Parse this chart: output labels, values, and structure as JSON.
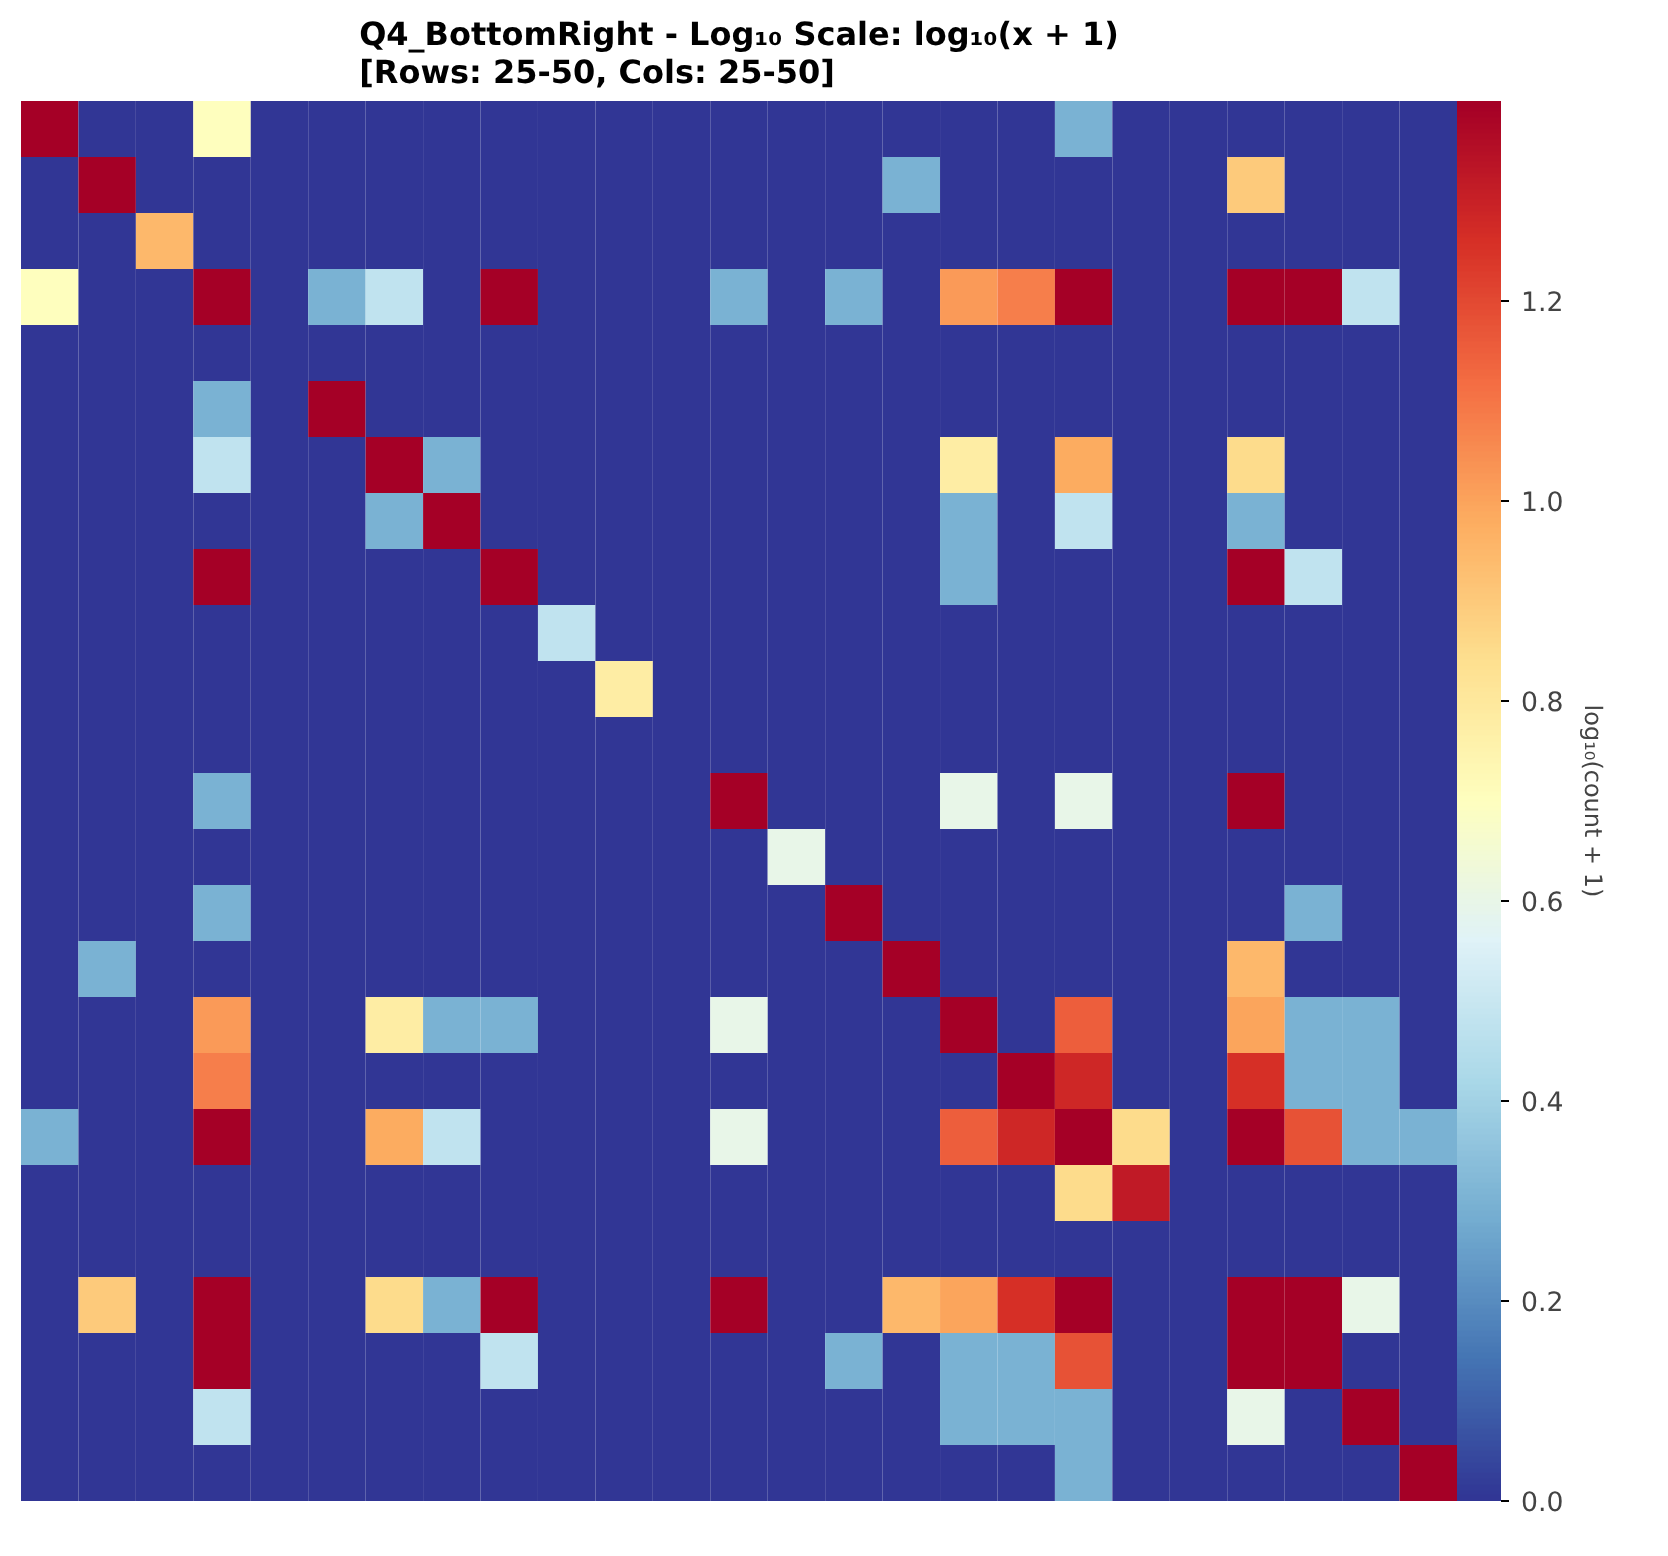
{
  "chart_data": {
    "type": "heatmap",
    "title": "Q4_BottomRight - Log₁₀ Scale: log₁₀(x + 1)\n[Rows: 25-50, Cols: 25-50]",
    "clabel": "log₁₀(count + 1)",
    "categories": [
      null,
      null,
      null,
      null,
      null,
      null,
      null,
      null,
      null,
      null,
      null,
      null,
      null,
      null,
      null,
      null,
      null,
      null,
      null,
      null,
      null,
      null,
      null,
      null,
      null
    ],
    "y_categories": [
      null,
      null,
      null,
      null,
      null,
      null,
      null,
      null,
      null,
      null,
      null,
      null,
      null,
      null,
      null,
      null,
      null,
      null,
      null,
      null,
      null,
      null,
      null,
      null,
      null
    ],
    "clim": [
      0,
      1.4
    ],
    "cticks": [
      {
        "value": 0,
        "label": "0.0"
      },
      {
        "value": 0.2,
        "label": "0.2"
      },
      {
        "value": 0.4,
        "label": "0.4"
      },
      {
        "value": 0.6,
        "label": "0.6"
      },
      {
        "value": 0.8,
        "label": "0.8"
      },
      {
        "value": 1.0,
        "label": "1.0"
      },
      {
        "value": 1.2,
        "label": "1.2"
      }
    ],
    "cells": [
      [
        1.4,
        0,
        0,
        0.7,
        0,
        0,
        0,
        0,
        0,
        0,
        0,
        0,
        0,
        0,
        0,
        0,
        0,
        0,
        0.3,
        0,
        0,
        0,
        0,
        0,
        0
      ],
      [
        0,
        1.4,
        0,
        0,
        0,
        0,
        0,
        0,
        0,
        0,
        0,
        0,
        0,
        0,
        0,
        0.3,
        0,
        0,
        0,
        0,
        0,
        0.9,
        0,
        0,
        0
      ],
      [
        0,
        0,
        0.95,
        0,
        0,
        0,
        0,
        0,
        0,
        0,
        0,
        0,
        0,
        0,
        0,
        0,
        0,
        0,
        0,
        0,
        0,
        0,
        0,
        0,
        0
      ],
      [
        0.7,
        0,
        0,
        1.4,
        0,
        0.3,
        0.48,
        0,
        1.4,
        0,
        0,
        0,
        0.3,
        0,
        0.3,
        0,
        1.02,
        1.08,
        1.4,
        0,
        0,
        1.4,
        1.4,
        0.48,
        0
      ],
      [
        0,
        0,
        0,
        0,
        0,
        0,
        0,
        0,
        0,
        0,
        0,
        0,
        0,
        0,
        0,
        0,
        0,
        0,
        0,
        0,
        0,
        0,
        0,
        0,
        0
      ],
      [
        0,
        0,
        0,
        0.3,
        0,
        1.4,
        0,
        0,
        0,
        0,
        0,
        0,
        0,
        0,
        0,
        0,
        0,
        0,
        0,
        0,
        0,
        0,
        0,
        0,
        0
      ],
      [
        0,
        0,
        0,
        0.48,
        0,
        0,
        1.4,
        0.3,
        0,
        0,
        0,
        0,
        0,
        0,
        0,
        0,
        0.78,
        0,
        0.98,
        0,
        0,
        0.85,
        0,
        0,
        0
      ],
      [
        0,
        0,
        0,
        0,
        0,
        0,
        0.3,
        1.4,
        0,
        0,
        0,
        0,
        0,
        0,
        0,
        0,
        0.3,
        0,
        0.48,
        0,
        0,
        0.3,
        0,
        0,
        0
      ],
      [
        0,
        0,
        0,
        1.4,
        0,
        0,
        0,
        0,
        1.4,
        0,
        0,
        0,
        0,
        0,
        0,
        0,
        0.3,
        0,
        0,
        0,
        0,
        1.4,
        0.48,
        0,
        0
      ],
      [
        0,
        0,
        0,
        0,
        0,
        0,
        0,
        0,
        0,
        0.48,
        0,
        0,
        0,
        0,
        0,
        0,
        0,
        0,
        0,
        0,
        0,
        0,
        0,
        0,
        0
      ],
      [
        0,
        0,
        0,
        0,
        0,
        0,
        0,
        0,
        0,
        0,
        0.78,
        0,
        0,
        0,
        0,
        0,
        0,
        0,
        0,
        0,
        0,
        0,
        0,
        0,
        0
      ],
      [
        0,
        0,
        0,
        0,
        0,
        0,
        0,
        0,
        0,
        0,
        0,
        0,
        0,
        0,
        0,
        0,
        0,
        0,
        0,
        0,
        0,
        0,
        0,
        0,
        0
      ],
      [
        0,
        0,
        0,
        0.3,
        0,
        0,
        0,
        0,
        0,
        0,
        0,
        0,
        1.4,
        0,
        0,
        0,
        0.6,
        0,
        0.6,
        0,
        0,
        1.4,
        0,
        0,
        0
      ],
      [
        0,
        0,
        0,
        0,
        0,
        0,
        0,
        0,
        0,
        0,
        0,
        0,
        0,
        0.6,
        0,
        0,
        0,
        0,
        0,
        0,
        0,
        0,
        0,
        0,
        0
      ],
      [
        0,
        0,
        0,
        0.3,
        0,
        0,
        0,
        0,
        0,
        0,
        0,
        0,
        0,
        0,
        1.4,
        0,
        0,
        0,
        0,
        0,
        0,
        0,
        0.3,
        0,
        0
      ],
      [
        0,
        0.3,
        0,
        0,
        0,
        0,
        0,
        0,
        0,
        0,
        0,
        0,
        0,
        0,
        0,
        1.4,
        0,
        0,
        0,
        0,
        0,
        0.95,
        0,
        0,
        0
      ],
      [
        0,
        0,
        0,
        1.02,
        0,
        0,
        0.78,
        0.3,
        0.3,
        0,
        0,
        0,
        0.6,
        0,
        0,
        0,
        1.4,
        0,
        1.15,
        0,
        0,
        1.0,
        0.3,
        0.3,
        0
      ],
      [
        0,
        0,
        0,
        1.08,
        0,
        0,
        0,
        0,
        0,
        0,
        0,
        0,
        0,
        0,
        0,
        0,
        0,
        1.4,
        1.28,
        0,
        0,
        1.26,
        0.3,
        0.3,
        0
      ],
      [
        0.3,
        0,
        0,
        1.4,
        0,
        0,
        0.98,
        0.48,
        0,
        0,
        0,
        0,
        0.6,
        0,
        0,
        0,
        1.15,
        1.28,
        1.4,
        0.85,
        0,
        1.4,
        1.18,
        0.3,
        0.3
      ],
      [
        0,
        0,
        0,
        0,
        0,
        0,
        0,
        0,
        0,
        0,
        0,
        0,
        0,
        0,
        0,
        0,
        0,
        0,
        0.85,
        1.32,
        0,
        0,
        0,
        0,
        0
      ],
      [
        0,
        0,
        0,
        0,
        0,
        0,
        0,
        0,
        0,
        0,
        0,
        0,
        0,
        0,
        0,
        0,
        0,
        0,
        0,
        0,
        0,
        0,
        0,
        0,
        0
      ],
      [
        0,
        0.9,
        0,
        1.4,
        0,
        0,
        0.85,
        0.3,
        1.4,
        0,
        0,
        0,
        1.4,
        0,
        0,
        0.95,
        1.0,
        1.26,
        1.4,
        0,
        0,
        1.4,
        1.4,
        0.6,
        0
      ],
      [
        0,
        0,
        0,
        1.4,
        0,
        0,
        0,
        0,
        0.48,
        0,
        0,
        0,
        0,
        0,
        0.3,
        0,
        0.3,
        0.3,
        1.18,
        0,
        0,
        1.4,
        1.4,
        0,
        0
      ],
      [
        0,
        0,
        0,
        0.48,
        0,
        0,
        0,
        0,
        0,
        0,
        0,
        0,
        0,
        0,
        0,
        0,
        0.3,
        0.3,
        0.3,
        0,
        0,
        0.6,
        0,
        1.4,
        0
      ],
      [
        0,
        0,
        0,
        0,
        0,
        0,
        0,
        0,
        0,
        0,
        0,
        0,
        0,
        0,
        0,
        0,
        0,
        0,
        0.3,
        0,
        0,
        0,
        0,
        0,
        1.4
      ]
    ]
  }
}
